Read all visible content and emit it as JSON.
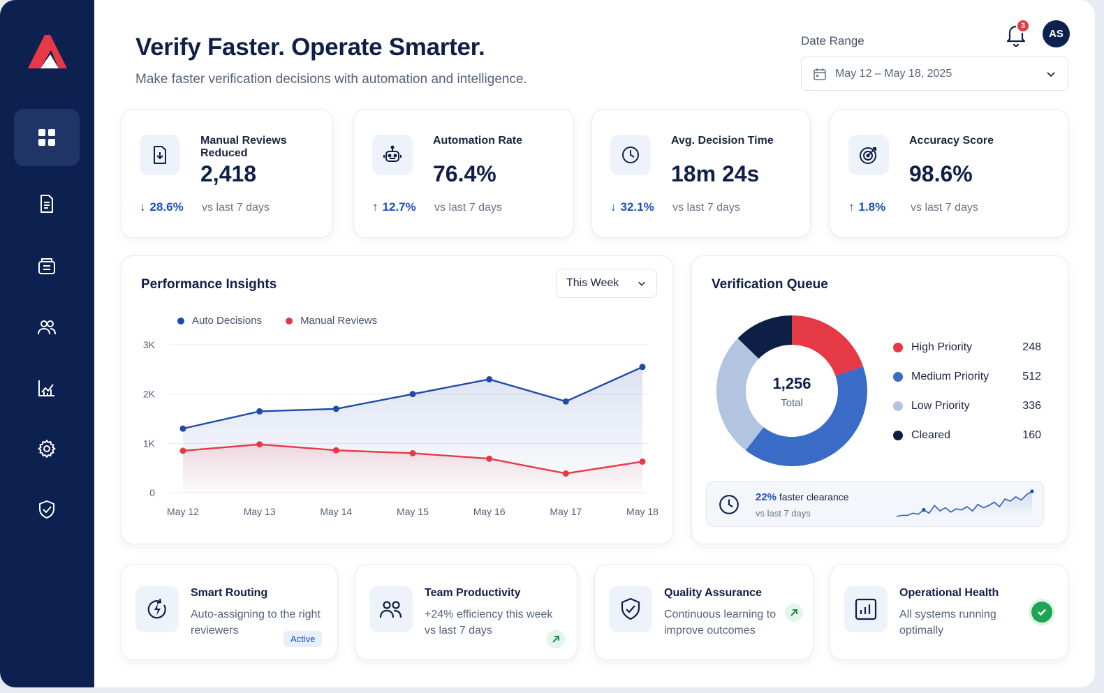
{
  "header": {
    "title": "Verify Faster. Operate Smarter.",
    "subtitle": "Make faster verification decisions with automation and intelligence.",
    "date_range_label": "Date Range",
    "date_range_value": "May 12 – May 18, 2025",
    "notification_count": "3",
    "avatar_initials": "AS"
  },
  "sidebar": {
    "items": [
      {
        "name": "dashboard",
        "icon": "grid-icon",
        "active": true
      },
      {
        "name": "documents",
        "icon": "document-icon"
      },
      {
        "name": "inbox",
        "icon": "inbox-icon"
      },
      {
        "name": "users",
        "icon": "users-icon"
      },
      {
        "name": "analytics",
        "icon": "chart-icon"
      },
      {
        "name": "settings",
        "icon": "gear-icon"
      },
      {
        "name": "security",
        "icon": "shield-check-icon"
      }
    ]
  },
  "kpis": [
    {
      "label": "Manual Reviews Reduced",
      "value": "2,418",
      "change": "28.6%",
      "direction": "down",
      "compare": "vs last 7 days",
      "icon": "download-doc-icon"
    },
    {
      "label": "Automation Rate",
      "value": "76.4%",
      "change": "12.7%",
      "direction": "up",
      "compare": "vs last 7 days",
      "icon": "robot-icon"
    },
    {
      "label": "Avg. Decision Time",
      "value": "18m 24s",
      "change": "32.1%",
      "direction": "down",
      "compare": "vs last 7 days",
      "icon": "clock-icon"
    },
    {
      "label": "Accuracy Score",
      "value": "98.6%",
      "change": "1.8%",
      "direction": "up",
      "compare": "vs last 7 days",
      "icon": "target-icon"
    }
  ],
  "performance": {
    "title": "Performance Insights",
    "period": "This Week",
    "legend_auto": "Auto Decisions",
    "legend_manual": "Manual Reviews"
  },
  "chart_data": {
    "type": "line",
    "x": [
      "May 12",
      "May 13",
      "May 14",
      "May 15",
      "May 16",
      "May 17",
      "May 18"
    ],
    "y_ticks": [
      "0",
      "1K",
      "2K",
      "3K"
    ],
    "ylim": [
      0,
      3000
    ],
    "grid": true,
    "legend_position": "top-left",
    "series": [
      {
        "name": "Auto Decisions",
        "color": "#1f4aa8",
        "values": [
          1300,
          1650,
          1700,
          2000,
          2300,
          1850,
          2550
        ]
      },
      {
        "name": "Manual Reviews",
        "color": "#e63946",
        "values": [
          850,
          980,
          860,
          800,
          690,
          390,
          630
        ]
      }
    ]
  },
  "queue": {
    "title": "Verification Queue",
    "total": "1,256",
    "total_label": "Total",
    "segments": [
      {
        "name": "High Priority",
        "value": 248,
        "color": "#e63946"
      },
      {
        "name": "Medium Priority",
        "value": 512,
        "color": "#3a6bc6"
      },
      {
        "name": "Low Priority",
        "value": 336,
        "color": "#b3c4e0"
      },
      {
        "name": "Cleared",
        "value": 160,
        "color": "#0d1f45"
      }
    ],
    "clearance_pct": "22%",
    "clearance_text": "faster clearance",
    "clearance_compare": "vs last 7 days",
    "sparkline": [
      2,
      3,
      3,
      5,
      4,
      8,
      5,
      12,
      7,
      10,
      6,
      9,
      8,
      11,
      7,
      13,
      10,
      12,
      15,
      11,
      18,
      16,
      20,
      17,
      22,
      25
    ]
  },
  "features": [
    {
      "title": "Smart Routing",
      "desc": "Auto-assigning to the right reviewers",
      "tag": "Active",
      "icon": "routing-icon"
    },
    {
      "title": "Team Productivity",
      "desc": "+24% efficiency this week vs last 7 days",
      "icon": "team-icon"
    },
    {
      "title": "Quality Assurance",
      "desc": "Continuous learning to improve outcomes",
      "icon": "shield-check-icon"
    },
    {
      "title": "Operational Health",
      "desc": "All systems running optimally",
      "icon": "bar-chart-icon"
    }
  ]
}
